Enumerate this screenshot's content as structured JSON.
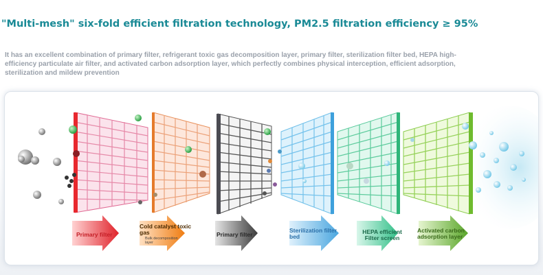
{
  "headline": "\"Multi-mesh\" six-fold efficient filtration technology, PM2.5 filtration efficiency ≥ 95%",
  "description": "It has an excellent combination of primary filter, refrigerant toxic gas decomposition layer, primary filter, sterilization filter bed, HEPA high-efficiency particulate air filter, and activated carbon adsorption layer, which perfectly combines physical interception, efficient adsorption, sterilization and mildew prevention",
  "stages": [
    {
      "label": "Primary filter",
      "color": "#e8404a",
      "mesh": "#f2a7bf"
    },
    {
      "label": "Cold catalyst toxic gas",
      "sublabel": "Bulk decomposition layer",
      "color": "#ef8a2a",
      "mesh": "#f4b595"
    },
    {
      "label": "Primary filter",
      "color": "#5a5a62",
      "mesh": "#8a8a92"
    },
    {
      "label": "Sterilization filter bed",
      "color": "#4aa6df",
      "mesh": "#8fcff3"
    },
    {
      "label": "HEPA efficient Filter screen",
      "color": "#3fbf86",
      "mesh": "#7fdcb0"
    },
    {
      "label": "Activated carbon adsorption layer",
      "color": "#7cc142",
      "mesh": "#b6e07c"
    }
  ]
}
